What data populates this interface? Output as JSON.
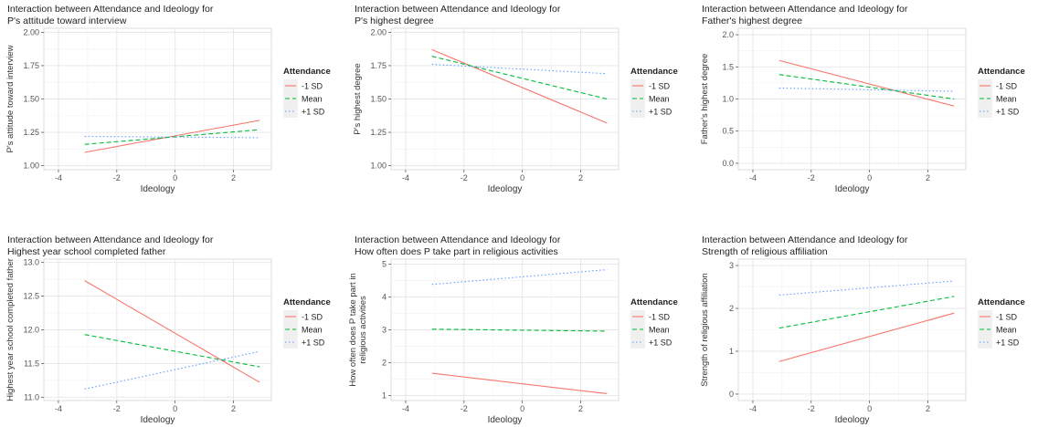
{
  "series_styles": [
    {
      "name": "-1 SD",
      "color": "#f8766d",
      "dash": ""
    },
    {
      "name": "Mean",
      "color": "#00ba38",
      "dash": "5,3"
    },
    {
      "name": "+1 SD",
      "color": "#619cff",
      "dash": "1.5,2.5"
    }
  ],
  "legend_title": "Attendance",
  "chart_data": [
    {
      "type": "line",
      "title": "Interaction between Attendance and Ideology for",
      "subtitle": "P's attitude toward interview",
      "xlabel": "Ideology",
      "ylabel": "P's attitude toward interview",
      "xlim": [
        -4.5,
        3.3
      ],
      "xticks": [
        -4,
        -2,
        0,
        2
      ],
      "ylim": [
        0.97,
        2.03
      ],
      "yticks": [
        1.0,
        1.25,
        1.5,
        1.75,
        2.0
      ],
      "ytick_labels": [
        "1.00",
        "1.25",
        "1.50",
        "1.75",
        "2.00"
      ],
      "x": [
        -3.1,
        2.9
      ],
      "series": [
        {
          "name": "-1 SD",
          "values": [
            1.1,
            1.34
          ]
        },
        {
          "name": "Mean",
          "values": [
            1.16,
            1.27
          ]
        },
        {
          "name": "+1 SD",
          "values": [
            1.22,
            1.21
          ]
        }
      ]
    },
    {
      "type": "line",
      "title": "Interaction between Attendance and Ideology for",
      "subtitle": "P's highest degree",
      "xlabel": "Ideology",
      "ylabel": "P's highest degree",
      "xlim": [
        -4.5,
        3.3
      ],
      "xticks": [
        -4,
        -2,
        0,
        2
      ],
      "ylim": [
        0.97,
        2.03
      ],
      "yticks": [
        1.0,
        1.25,
        1.5,
        1.75,
        2.0
      ],
      "ytick_labels": [
        "1.00",
        "1.25",
        "1.50",
        "1.75",
        "2.00"
      ],
      "x": [
        -3.1,
        2.9
      ],
      "series": [
        {
          "name": "-1 SD",
          "values": [
            1.87,
            1.32
          ]
        },
        {
          "name": "Mean",
          "values": [
            1.82,
            1.5
          ]
        },
        {
          "name": "+1 SD",
          "values": [
            1.76,
            1.69
          ]
        }
      ]
    },
    {
      "type": "line",
      "title": "Interaction between Attendance and Ideology for",
      "subtitle": "Father's highest degree",
      "xlabel": "Ideology",
      "ylabel": "Father's highest degree",
      "xlim": [
        -4.5,
        3.3
      ],
      "xticks": [
        -4,
        -2,
        0,
        2
      ],
      "ylim": [
        -0.1,
        2.1
      ],
      "yticks": [
        0.0,
        0.5,
        1.0,
        1.5,
        2.0
      ],
      "ytick_labels": [
        "0.0",
        "0.5",
        "1.0",
        "1.5",
        "2.0"
      ],
      "x": [
        -3.1,
        2.9
      ],
      "series": [
        {
          "name": "-1 SD",
          "values": [
            1.6,
            0.89
          ]
        },
        {
          "name": "Mean",
          "values": [
            1.38,
            1.0
          ]
        },
        {
          "name": "+1 SD",
          "values": [
            1.17,
            1.12
          ]
        }
      ]
    },
    {
      "type": "line",
      "title": "Interaction between Attendance and Ideology for",
      "subtitle": "Highest year school completed father",
      "xlabel": "Ideology",
      "ylabel": "Highest year school completed father",
      "xlim": [
        -4.5,
        3.3
      ],
      "xticks": [
        -4,
        -2,
        0,
        2
      ],
      "ylim": [
        10.95,
        13.05
      ],
      "yticks": [
        11.0,
        11.5,
        12.0,
        12.5,
        13.0
      ],
      "ytick_labels": [
        "11.0",
        "11.5",
        "12.0",
        "12.5",
        "13.0"
      ],
      "x": [
        -3.1,
        2.9
      ],
      "series": [
        {
          "name": "-1 SD",
          "values": [
            12.73,
            11.22
          ]
        },
        {
          "name": "Mean",
          "values": [
            11.93,
            11.45
          ]
        },
        {
          "name": "+1 SD",
          "values": [
            11.12,
            11.68
          ]
        }
      ]
    },
    {
      "type": "line",
      "title": "Interaction between Attendance and Ideology for",
      "subtitle": "How often does P take part in religious activities",
      "xlabel": "Ideology",
      "ylabel": "How often does P take part in religious activities",
      "xlim": [
        -4.5,
        3.3
      ],
      "xticks": [
        -4,
        -2,
        0,
        2
      ],
      "ylim": [
        0.85,
        5.15
      ],
      "yticks": [
        1,
        2,
        3,
        4,
        5
      ],
      "ytick_labels": [
        "1",
        "2",
        "3",
        "4",
        "5"
      ],
      "x": [
        -3.1,
        2.9
      ],
      "series": [
        {
          "name": "-1 SD",
          "values": [
            1.68,
            1.06
          ]
        },
        {
          "name": "Mean",
          "values": [
            3.02,
            2.96
          ]
        },
        {
          "name": "+1 SD",
          "values": [
            4.38,
            4.83
          ]
        }
      ]
    },
    {
      "type": "line",
      "title": "Interaction between Attendance and Ideology for",
      "subtitle": "Strength of religious affiliation",
      "xlabel": "Ideology",
      "ylabel": "Strength of religious affiliation",
      "xlim": [
        -4.5,
        3.3
      ],
      "xticks": [
        -4,
        -2,
        0,
        2
      ],
      "ylim": [
        -0.15,
        3.15
      ],
      "yticks": [
        0,
        1,
        2,
        3
      ],
      "ytick_labels": [
        "0",
        "1",
        "2",
        "3"
      ],
      "x": [
        -3.1,
        2.9
      ],
      "series": [
        {
          "name": "-1 SD",
          "values": [
            0.76,
            1.89
          ]
        },
        {
          "name": "Mean",
          "values": [
            1.54,
            2.28
          ]
        },
        {
          "name": "+1 SD",
          "values": [
            2.31,
            2.64
          ]
        }
      ]
    }
  ]
}
